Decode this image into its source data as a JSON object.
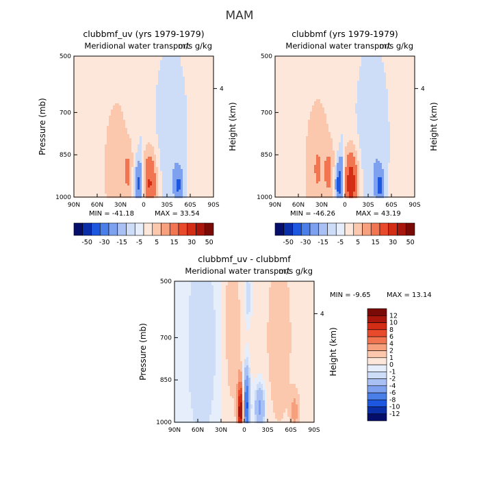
{
  "figure": {
    "title": "MAM"
  },
  "chart_data": [
    {
      "type": "heatmap",
      "title": "clubbmf_uv (yrs 1979-1979)",
      "subtitle": "Meridional water transport",
      "units": "m/s g/kg",
      "xlabel": "",
      "ylabel": "Pressure (mb)",
      "y2label": "Height (km)",
      "x_ticks": [
        "90N",
        "60N",
        "30N",
        "0",
        "30S",
        "60S",
        "90S"
      ],
      "x_range": [
        90,
        -90
      ],
      "y_ticks": [
        "500",
        "700",
        "850",
        "1000"
      ],
      "y_range": [
        1000,
        500
      ],
      "y2_ticks": [
        "4"
      ],
      "min_label": "MIN = -41.18",
      "max_label": "MAX = 33.54",
      "colorbar": {
        "orientation": "horizontal",
        "levels": [
          "-50",
          "-30",
          "-15",
          "-5",
          "5",
          "15",
          "30",
          "50"
        ],
        "colors": [
          "#050f6b",
          "#0a2fa8",
          "#1d57e0",
          "#4a7ee8",
          "#7ea1ef",
          "#a8c0f3",
          "#cddcf7",
          "#e6eefb",
          "#fde7da",
          "#fbc7ad",
          "#f7a07d",
          "#f17551",
          "#e84a2c",
          "#d42d15",
          "#a8160c",
          "#7a0a05"
        ]
      },
      "features": [
        {
          "lat": 35,
          "p": 900,
          "value": 12,
          "sx": 9,
          "sy": 140
        },
        {
          "lat": 20,
          "p": 910,
          "value": 14,
          "sx": 4,
          "sy": 60
        },
        {
          "lat": 7,
          "p": 955,
          "value": -38,
          "sx": 4,
          "sy": 55
        },
        {
          "lat": 5,
          "p": 850,
          "value": -10,
          "sx": 3,
          "sy": 50
        },
        {
          "lat": -8,
          "p": 950,
          "value": 34,
          "sx": 7,
          "sy": 85
        },
        {
          "lat": -35,
          "p": 800,
          "value": -12,
          "sx": 13,
          "sy": 210
        },
        {
          "lat": -45,
          "p": 960,
          "value": -25,
          "sx": 4,
          "sy": 45
        }
      ],
      "base": {
        "north": 2,
        "south": -2,
        "boundary": 5
      }
    },
    {
      "type": "heatmap",
      "title": "clubbmf (yrs 1979-1979)",
      "subtitle": "Meridional water transport",
      "units": "m/s g/kg",
      "xlabel": "",
      "ylabel": "",
      "y2label": "Height (km)",
      "x_ticks": [
        "90N",
        "60N",
        "30N",
        "0",
        "30S",
        "60S",
        "90S"
      ],
      "x_range": [
        90,
        -90
      ],
      "y_ticks": [
        "500",
        "700",
        "850",
        "1000"
      ],
      "y_range": [
        1000,
        500
      ],
      "y2_ticks": [
        "4"
      ],
      "min_label": "MIN = -46.26",
      "max_label": "MAX = 43.19",
      "colorbar": {
        "orientation": "horizontal",
        "levels": [
          "-50",
          "-30",
          "-15",
          "-5",
          "5",
          "15",
          "30",
          "50"
        ],
        "colors": [
          "#050f6b",
          "#0a2fa8",
          "#1d57e0",
          "#4a7ee8",
          "#7ea1ef",
          "#a8c0f3",
          "#cddcf7",
          "#e6eefb",
          "#fde7da",
          "#fbc7ad",
          "#f7a07d",
          "#f17551",
          "#e84a2c",
          "#d42d15",
          "#a8160c",
          "#7a0a05"
        ]
      },
      "features": [
        {
          "lat": 35,
          "p": 900,
          "value": 14,
          "sx": 9,
          "sy": 140
        },
        {
          "lat": 20,
          "p": 910,
          "value": 15,
          "sx": 4,
          "sy": 60
        },
        {
          "lat": 7,
          "p": 955,
          "value": -44,
          "sx": 4,
          "sy": 55
        },
        {
          "lat": 5,
          "p": 850,
          "value": -12,
          "sx": 3,
          "sy": 50
        },
        {
          "lat": -8,
          "p": 950,
          "value": 42,
          "sx": 7,
          "sy": 85
        },
        {
          "lat": -35,
          "p": 800,
          "value": -13,
          "sx": 13,
          "sy": 210
        },
        {
          "lat": -45,
          "p": 960,
          "value": -27,
          "sx": 4,
          "sy": 45
        }
      ],
      "base": {
        "north": 2,
        "south": -2,
        "boundary": 5
      }
    },
    {
      "type": "heatmap",
      "title": "clubbmf_uv - clubbmf",
      "subtitle": "Meridional water transport",
      "units": "m/s g/kg",
      "xlabel": "",
      "ylabel": "Pressure (mb)",
      "y2label": "Height (km)",
      "x_ticks": [
        "90N",
        "60N",
        "30N",
        "0",
        "30S",
        "60S",
        "90S"
      ],
      "x_range": [
        90,
        -90
      ],
      "y_ticks": [
        "500",
        "700",
        "850",
        "1000"
      ],
      "y_range": [
        1000,
        500
      ],
      "y2_ticks": [
        "4"
      ],
      "min_label": "MIN = -9.65",
      "max_label": "MAX = 13.14",
      "colorbar": {
        "orientation": "vertical",
        "levels": [
          "-12",
          "-10",
          "-8",
          "-6",
          "-4",
          "-2",
          "-1",
          "0",
          "1",
          "2",
          "4",
          "6",
          "8",
          "10",
          "12"
        ],
        "colors": [
          "#050f6b",
          "#0a2fa8",
          "#1d57e0",
          "#4a7ee8",
          "#7ea1ef",
          "#a8c0f3",
          "#cddcf7",
          "#e6eefb",
          "#fde7da",
          "#fbc7ad",
          "#f7a07d",
          "#f17551",
          "#e84a2c",
          "#d42d15",
          "#a8160c",
          "#7a0a05"
        ]
      },
      "features": [
        {
          "lat": 5,
          "p": 960,
          "value": 12,
          "sx": 2.5,
          "sy": 70
        },
        {
          "lat": -3,
          "p": 940,
          "value": -9,
          "sx": 3,
          "sy": 90
        },
        {
          "lat": -20,
          "p": 950,
          "value": -5,
          "sx": 5,
          "sy": 60
        },
        {
          "lat": 55,
          "p": 720,
          "value": -1.5,
          "sx": 12,
          "sy": 220
        },
        {
          "lat": 15,
          "p": 650,
          "value": 1.5,
          "sx": 6,
          "sy": 180
        },
        {
          "lat": -45,
          "p": 700,
          "value": 1.5,
          "sx": 10,
          "sy": 200
        },
        {
          "lat": -5,
          "p": 560,
          "value": -2.5,
          "sx": 3,
          "sy": 60
        },
        {
          "lat": -65,
          "p": 960,
          "value": 2,
          "sx": 4,
          "sy": 50
        }
      ],
      "base": {
        "north": -0.5,
        "south": 0.5,
        "boundary": 30
      }
    }
  ]
}
